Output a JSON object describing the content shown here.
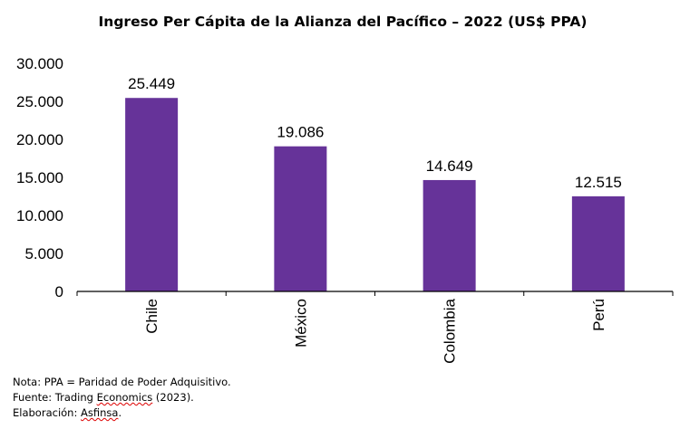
{
  "chart_data": {
    "type": "bar",
    "title": "Ingreso Per Cápita de la Alianza del Pacífico – 2022 (US$ PPA)",
    "categories": [
      "Chile",
      "México",
      "Colombia",
      "Perú"
    ],
    "values": [
      25449,
      19086,
      14649,
      12515
    ],
    "data_labels": [
      "25.449",
      "19.086",
      "14.649",
      "12.515"
    ],
    "ylim": [
      0,
      30000
    ],
    "yticks": [
      0,
      5000,
      10000,
      15000,
      20000,
      25000,
      30000
    ],
    "ytick_labels": [
      "0",
      "5.000",
      "10.000",
      "15.000",
      "20.000",
      "25.000",
      "30.000"
    ],
    "xlabel": "",
    "ylabel": "",
    "grid": false,
    "legend": "none",
    "bar_color": "#663399"
  },
  "notes": {
    "nota": "Nota: PPA = Paridad de Poder Adquisitivo.",
    "fuente_prefix": "Fuente: Trading ",
    "fuente_link": "Economics",
    "fuente_suffix": " (2023).",
    "elab_prefix": "Elaboración: ",
    "elab_name": "Asfinsa",
    "elab_suffix": "."
  }
}
